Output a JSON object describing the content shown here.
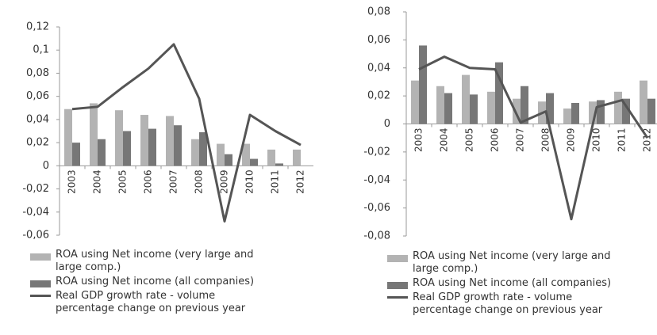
{
  "chart_data": [
    {
      "type": "bar",
      "categories": [
        "2003",
        "2004",
        "2005",
        "2006",
        "2007",
        "2008",
        "2009",
        "2010",
        "2011",
        "2012"
      ],
      "ylim": [
        -0.06,
        0.12
      ],
      "yticks": [
        {
          "value": -0.06,
          "label": "-0,06"
        },
        {
          "value": -0.04,
          "label": "-0,04"
        },
        {
          "value": -0.02,
          "label": "-0,02"
        },
        0,
        {
          "value": 0.02,
          "label": "0,02"
        },
        {
          "value": 0.04,
          "label": "0,04"
        },
        {
          "value": 0.06,
          "label": "0,06"
        },
        {
          "value": 0.08,
          "label": "0,08"
        },
        {
          "value": 0.1,
          "label": "0,1"
        },
        {
          "value": 0.12,
          "label": "0,12"
        }
      ],
      "grid": false,
      "series": [
        {
          "name": "ROA using Net income (very large and large comp.)",
          "color": "#b3b3b3",
          "kind": "bar",
          "values": [
            0.049,
            0.054,
            0.048,
            0.044,
            0.043,
            0.023,
            0.019,
            0.019,
            0.014,
            0.014
          ]
        },
        {
          "name": "ROA using Net income (all companies)",
          "color": "#777777",
          "kind": "bar",
          "values": [
            0.02,
            0.023,
            0.03,
            0.032,
            0.035,
            0.029,
            0.01,
            0.006,
            0.002,
            null
          ]
        },
        {
          "name": "Real GDP growth rate - volume percentage change on previous year",
          "color": "#555555",
          "kind": "line",
          "values": [
            0.049,
            0.051,
            0.068,
            0.084,
            0.105,
            0.058,
            -0.048,
            0.044,
            0.03,
            0.018
          ]
        }
      ]
    },
    {
      "type": "bar",
      "categories": [
        "2003",
        "2004",
        "2005",
        "2006",
        "2007",
        "2008",
        "2009",
        "2010",
        "2011",
        "2012"
      ],
      "ylim": [
        -0.08,
        0.08
      ],
      "yticks": [
        {
          "value": -0.08,
          "label": "-0,08"
        },
        {
          "value": -0.06,
          "label": "-0,06"
        },
        {
          "value": -0.04,
          "label": "-0,04"
        },
        {
          "value": -0.02,
          "label": "-0,02"
        },
        0,
        {
          "value": 0.02,
          "label": "0,02"
        },
        {
          "value": 0.04,
          "label": "0,04"
        },
        {
          "value": 0.06,
          "label": "0,06"
        },
        {
          "value": 0.08,
          "label": "0,08"
        }
      ],
      "grid": false,
      "series": [
        {
          "name": "ROA using Net income (very large and large comp.)",
          "color": "#b3b3b3",
          "kind": "bar",
          "values": [
            0.031,
            0.027,
            0.035,
            0.023,
            0.018,
            0.016,
            0.011,
            0.016,
            0.023,
            0.031
          ]
        },
        {
          "name": "ROA using Net income (all companies)",
          "color": "#777777",
          "kind": "bar",
          "values": [
            0.056,
            0.022,
            0.021,
            0.044,
            0.027,
            0.022,
            0.015,
            0.017,
            0.018,
            0.018
          ]
        },
        {
          "name": "Real GDP growth rate - volume percentage change on previous year",
          "color": "#555555",
          "kind": "line",
          "values": [
            0.039,
            0.048,
            0.04,
            0.039,
            0.001,
            0.009,
            -0.068,
            0.012,
            0.017,
            -0.01
          ]
        }
      ]
    }
  ]
}
